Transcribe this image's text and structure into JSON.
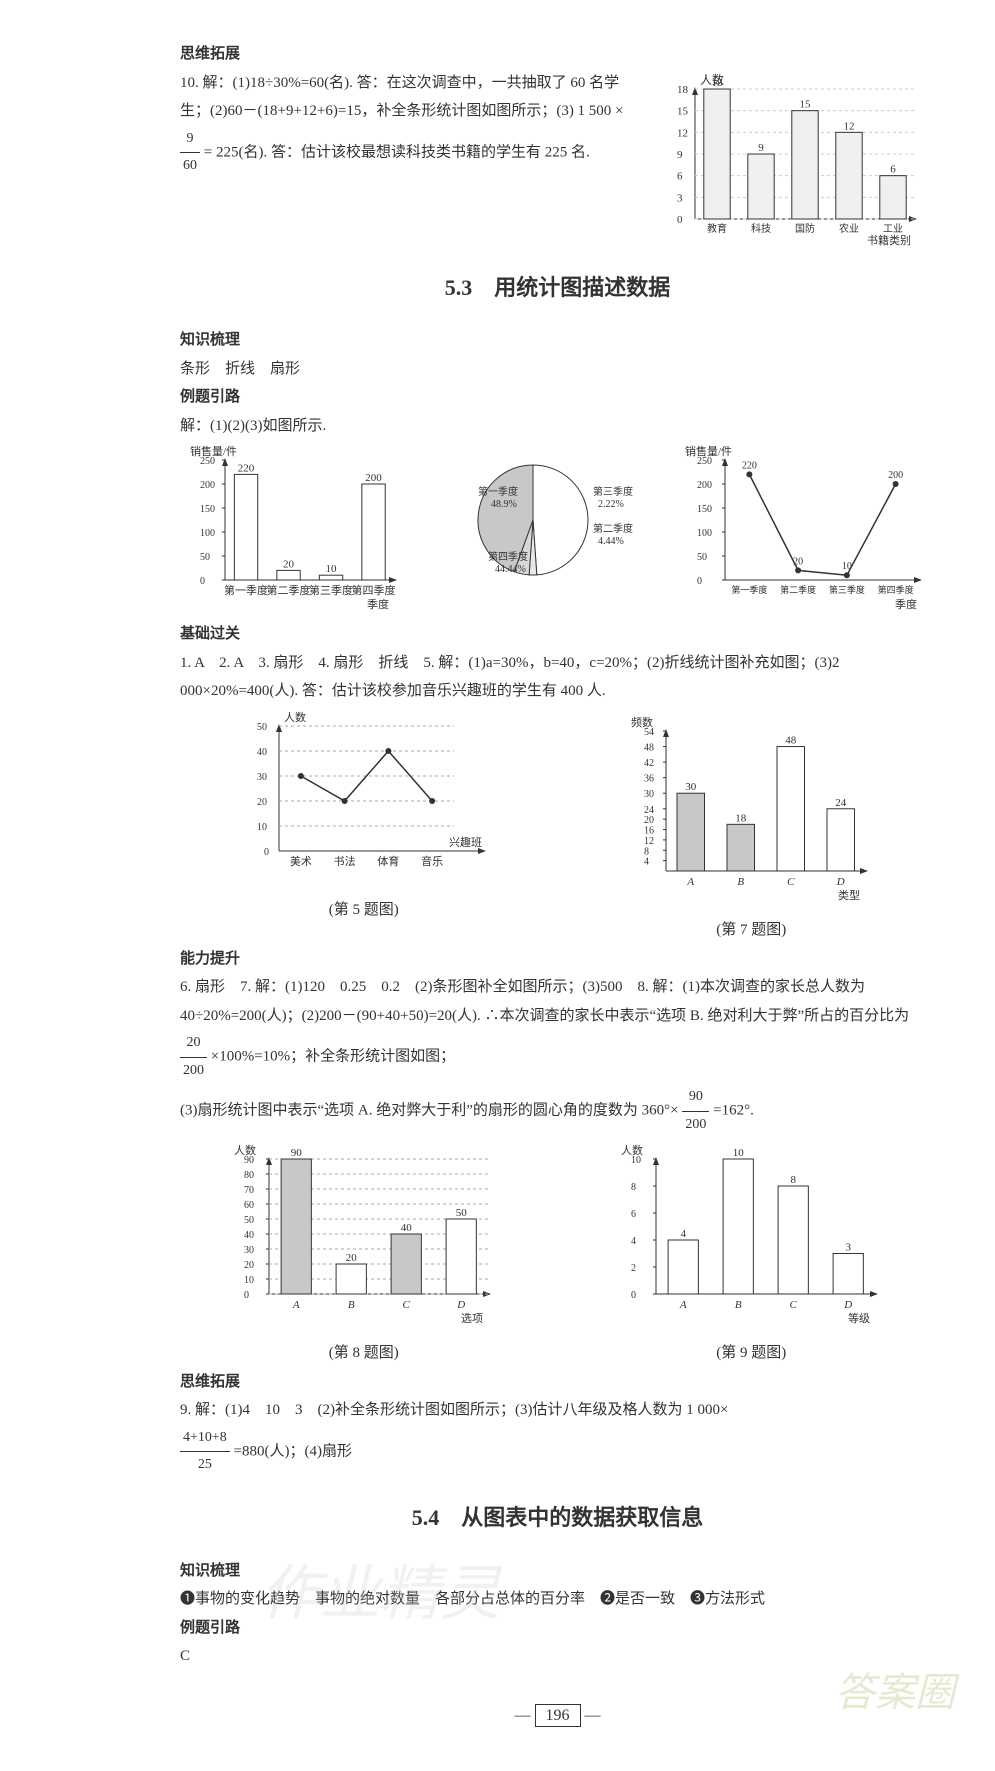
{
  "sec_siwei1": "思维拓展",
  "q10_text_1": "10. 解：(1)18÷30%=60(名). 答：在这次调查中，一共抽取了 60 名学生；(2)60－(18+9+12+6)=15，补全条形统计图如图所示；(3) 1 500 × ",
  "q10_frac_n": "9",
  "q10_frac_d": "60",
  "q10_text_2": " = 225(名). 答：估计该校最想读科技类书籍的学生有 225 名.",
  "chart10": {
    "ylabel": "人数",
    "xlabel": "书籍类别",
    "ymax": 18,
    "ytick_step": 3,
    "categories": [
      "教育",
      "科技",
      "国防",
      "农业",
      "工业"
    ],
    "values": [
      18,
      9,
      15,
      12,
      6
    ],
    "bar_fill": "#f0f0f0",
    "bar_stroke": "#333",
    "grid_color": "#cccccc",
    "bg": "#ffffff"
  },
  "section_5_3": "5.3　用统计图描述数据",
  "sec_zhishi": "知识梳理",
  "zhishi_5_3": "条形　折线　扇形",
  "sec_liti": "例题引路",
  "liti_5_3": "解：(1)(2)(3)如图所示.",
  "chart_bar_sales": {
    "ylabel": "销售量/件",
    "ymax": 250,
    "ytick_step": 50,
    "categories": [
      "第一季度",
      "第二季度",
      "第三季度",
      "第四季度"
    ],
    "xtrail": "季度",
    "values": [
      220,
      20,
      10,
      200
    ],
    "bar_fill": "#ffffff",
    "bar_stroke": "#333",
    "bg": "#ffffff"
  },
  "chart_pie": {
    "slices": [
      {
        "label": "第一季度",
        "pct": "48.9%",
        "value": 48.9,
        "color": "#ffffff"
      },
      {
        "label": "第三季度",
        "pct": "2.22%",
        "value": 2.22,
        "color": "#e8e8e8"
      },
      {
        "label": "第二季度",
        "pct": "4.44%",
        "value": 4.44,
        "color": "#d8d8d8"
      },
      {
        "label": "第四季度",
        "pct": "44.44%",
        "value": 44.44,
        "color": "#c8c8c8"
      }
    ],
    "stroke": "#333"
  },
  "chart_line_sales": {
    "ylabel": "销售量/件",
    "ymax": 250,
    "ytick_step": 50,
    "categories": [
      "第一季度",
      "第二季度",
      "第三季度",
      "第四季度"
    ],
    "xtrail": "季度",
    "values": [
      220,
      20,
      10,
      200
    ],
    "line_color": "#333",
    "bg": "#ffffff"
  },
  "sec_jichu": "基础过关",
  "jichu_5_3_line1": "1. A　2. A　3. 扇形　4. 扇形　折线　5. 解：(1)a=30%，b=40，c=20%；(2)折线统计图补充如图；(3)2 000×20%=400(人). 答：估计该校参加音乐兴趣班的学生有 400 人.",
  "chart_q5": {
    "ylabel": "人数",
    "xlabel": "兴趣班",
    "ymax": 50,
    "ytick_step": 10,
    "categories": [
      "美术",
      "书法",
      "体育",
      "音乐"
    ],
    "values": [
      30,
      20,
      40,
      20
    ],
    "line_color": "#333",
    "grid_color": "#aaa"
  },
  "q5_caption": "(第 5 题图)",
  "chart_q7": {
    "ylabel": "频数",
    "categories": [
      "A",
      "B",
      "C",
      "D"
    ],
    "xtrail": "类型",
    "values": [
      30,
      18,
      48,
      24
    ],
    "yticks": [
      4,
      8,
      12,
      16,
      20,
      24,
      30,
      36,
      42,
      48,
      54
    ],
    "fill_pattern": [
      "#c8c8c8",
      "#c8c8c8",
      "#ffffff",
      "#ffffff"
    ],
    "bar_stroke": "#333"
  },
  "q7_caption": "(第 7 题图)",
  "sec_nengli": "能力提升",
  "nengli_line1": "6. 扇形　7. 解：(1)120　0.25　0.2　(2)条形图补全如图所示；(3)500　8. 解：(1)本次调查的家长总人数为 40÷20%=200(人)；(2)200－(90+40+50)=20(人). ∴本次调查的家长中表示“选项 B. 绝对利大于弊”所占的百分比为 ",
  "nengli_frac1_n": "20",
  "nengli_frac1_d": "200",
  "nengli_line1b": " ×100%=10%；补全条形统计图如图；",
  "nengli_line2": "(3)扇形统计图中表示“选项 A. 绝对弊大于利”的扇形的圆心角的度数为 360°× ",
  "nengli_frac2_n": "90",
  "nengli_frac2_d": "200",
  "nengli_line2b": " =162°.",
  "chart_q8": {
    "ylabel": "人数",
    "xtrail": "选项",
    "ymax": 90,
    "ytick_step": 10,
    "categories": [
      "A",
      "B",
      "C",
      "D"
    ],
    "values": [
      90,
      20,
      40,
      50
    ],
    "fill_pattern": [
      "#c8c8c8",
      "#ffffff",
      "#c8c8c8",
      "#ffffff"
    ],
    "bar_stroke": "#333",
    "grid_color": "#aaa"
  },
  "q8_caption": "(第 8 题图)",
  "chart_q9": {
    "ylabel": "人数",
    "xtrail": "等级",
    "ymax": 10,
    "ytick_step": 2,
    "categories": [
      "A",
      "B",
      "C",
      "D"
    ],
    "values": [
      4,
      10,
      8,
      3
    ],
    "bar_fill": "#ffffff",
    "bar_stroke": "#333"
  },
  "q9_caption": "(第 9 题图)",
  "sec_siwei2": "思维拓展",
  "q9_sol_a": "9. 解：(1)4　10　3　(2)补全条形统计图如图所示；(3)估计八年级及格人数为 1 000×",
  "q9_sol_frac_n": "4+10+8",
  "q9_sol_frac_d": "25",
  "q9_sol_b": "=880(人)；(4)扇形",
  "section_5_4": "5.4　从图表中的数据获取信息",
  "zhishi_5_4": "❶事物的变化趋势　事物的绝对数量　各部分占总体的百分率　❷是否一致　❸方法形式",
  "liti_5_4": "C",
  "page_number": "196",
  "watermark_low": "作业精灵",
  "watermark_az": "答案圈"
}
